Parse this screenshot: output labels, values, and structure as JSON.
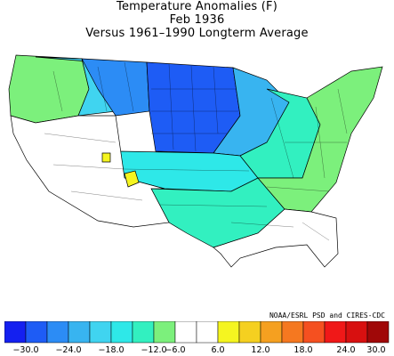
{
  "title": {
    "line1": "Temperature Anomalies (F)",
    "line2": "Feb 1936",
    "line3": "Versus 1961–1990 Longterm Average"
  },
  "credit": "NOAA/ESRL PSD and CIRES-CDC",
  "legend": {
    "colors": [
      "#1420f0",
      "#1e5cf5",
      "#2c8cf5",
      "#38b4f0",
      "#40d4f0",
      "#2ee8e8",
      "#32f0c0",
      "#7cf07c",
      "#ffffff",
      "#ffffff",
      "#f5f520",
      "#f5d020",
      "#f5a020",
      "#f57820",
      "#f55020",
      "#f01818",
      "#d81010",
      "#a00808"
    ],
    "ticks": [
      "−30.0",
      "−24.0",
      "−18.0",
      "−12.0",
      "−6.0",
      "6.0",
      "12.0",
      "18.0",
      "24.0",
      "30.0"
    ]
  },
  "map": {
    "variable": "Temperature anomaly (F)",
    "regions": [
      {
        "name": "pacific-northwest",
        "color": "#7cf07c"
      },
      {
        "name": "northern-rockies",
        "color": "#40d4f0"
      },
      {
        "name": "montana-plains",
        "color": "#2c8cf5"
      },
      {
        "name": "dakotas-minnesota",
        "color": "#1e5cf5"
      },
      {
        "name": "upper-midwest",
        "color": "#38b4f0"
      },
      {
        "name": "central-plains",
        "color": "#2ee8e8"
      },
      {
        "name": "great-lakes-ohio",
        "color": "#32f0c0"
      },
      {
        "name": "south-central",
        "color": "#32f0c0"
      },
      {
        "name": "east-coast",
        "color": "#7cf07c"
      },
      {
        "name": "southwest",
        "color": "#ffffff"
      },
      {
        "name": "southeast",
        "color": "#ffffff"
      },
      {
        "name": "utah-spots",
        "color": "#f5f520"
      }
    ]
  }
}
